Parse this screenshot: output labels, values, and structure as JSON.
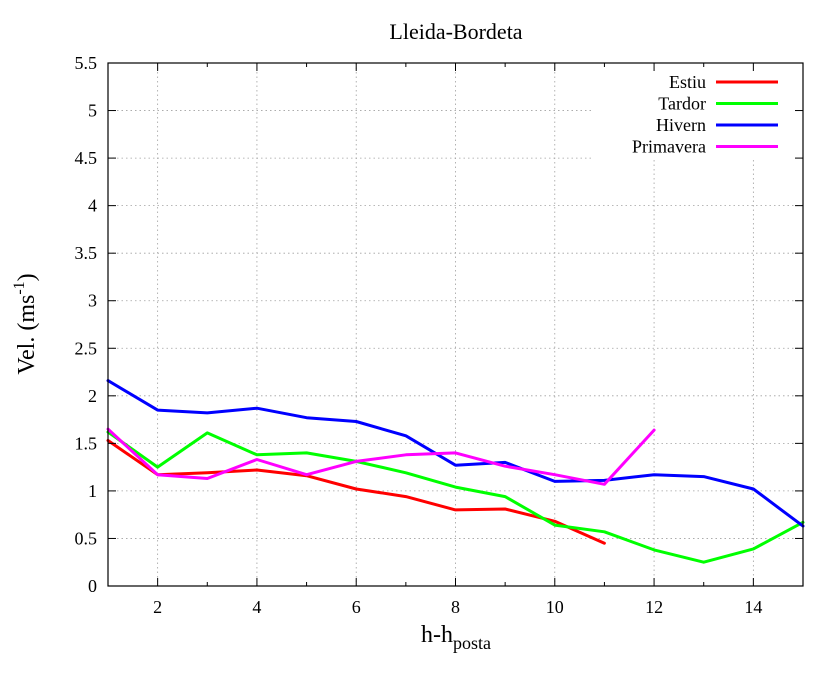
{
  "chart_data": {
    "type": "line",
    "title": "Lleida-Bordeta",
    "xlabel": {
      "base": "h-h",
      "sub": "posta"
    },
    "ylabel": {
      "base": "Vel. (ms",
      "sup": "-1",
      "end": ")"
    },
    "xlim": [
      1,
      15
    ],
    "ylim": [
      0,
      5.5
    ],
    "xticks": [
      2,
      4,
      6,
      8,
      10,
      12,
      14
    ],
    "yticks": [
      0,
      0.5,
      1,
      1.5,
      2,
      2.5,
      3,
      3.5,
      4,
      4.5,
      5,
      5.5
    ],
    "ytick_labels": [
      "0",
      "0.5",
      "1",
      "1.5",
      "2",
      "2.5",
      "3",
      "3.5",
      "4",
      "4.5",
      "5",
      "5.5"
    ],
    "grid": true,
    "legend_position": "top-right",
    "series": [
      {
        "name": "Estiu",
        "color": "#ff0000",
        "x": [
          1,
          2,
          3,
          4,
          5,
          6,
          7,
          8,
          9,
          10,
          11
        ],
        "y": [
          1.53,
          1.17,
          1.19,
          1.22,
          1.16,
          1.02,
          0.94,
          0.8,
          0.81,
          0.68,
          0.45
        ]
      },
      {
        "name": "Tardor",
        "color": "#00ff00",
        "x": [
          1,
          2,
          3,
          4,
          5,
          6,
          7,
          8,
          9,
          10,
          11,
          12,
          13,
          14,
          15
        ],
        "y": [
          1.62,
          1.25,
          1.61,
          1.38,
          1.4,
          1.31,
          1.19,
          1.04,
          0.94,
          0.64,
          0.57,
          0.38,
          0.25,
          0.39,
          0.67
        ]
      },
      {
        "name": "Hivern",
        "color": "#0000ff",
        "x": [
          1,
          2,
          3,
          4,
          5,
          6,
          7,
          8,
          9,
          10,
          11,
          12,
          13,
          14,
          15
        ],
        "y": [
          2.16,
          1.85,
          1.82,
          1.87,
          1.77,
          1.73,
          1.58,
          1.27,
          1.3,
          1.1,
          1.11,
          1.17,
          1.15,
          1.02,
          0.63
        ]
      },
      {
        "name": "Primavera",
        "color": "#ff00ff",
        "x": [
          1,
          2,
          3,
          4,
          5,
          6,
          7,
          8,
          9,
          10,
          11,
          12
        ],
        "y": [
          1.65,
          1.17,
          1.13,
          1.33,
          1.17,
          1.31,
          1.38,
          1.4,
          1.26,
          1.17,
          1.07,
          1.64
        ]
      }
    ]
  }
}
